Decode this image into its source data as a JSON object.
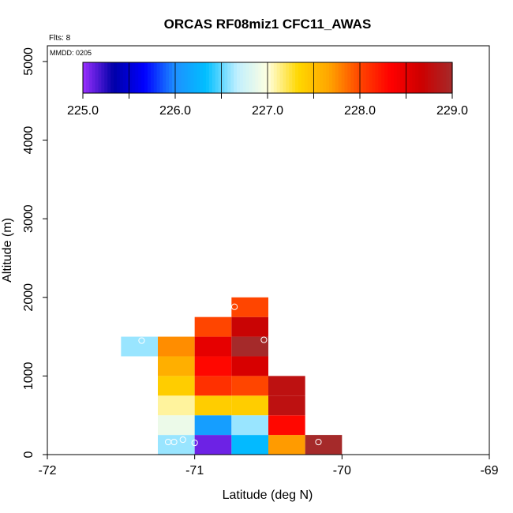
{
  "chart_data": {
    "type": "heatmap",
    "title": "ORCAS RF08miz1 CFC11_AWAS",
    "flights_label": "Flts: 8",
    "mmdd_label": "MMDD: 0205",
    "xlabel": "Latitude (deg N)",
    "ylabel": "Altitude (m)",
    "xlim": [
      -72,
      -69
    ],
    "ylim": [
      0,
      5200
    ],
    "x_ticks": [
      -72,
      -71,
      -70,
      -69
    ],
    "x_tick_labels": [
      "-72",
      "-71",
      "-70",
      "-69"
    ],
    "y_ticks": [
      0,
      1000,
      2000,
      3000,
      4000,
      5000
    ],
    "y_tick_labels": [
      "0",
      "1000",
      "2000",
      "3000",
      "4000",
      "5000"
    ],
    "bin_width_deg": 0.25,
    "bin_height_m": 250,
    "colorbar": {
      "min": 225.0,
      "max": 229.0,
      "ticks": [
        225.0,
        226.0,
        227.0,
        228.0,
        229.0
      ],
      "tick_labels": [
        "225.0",
        "226.0",
        "227.0",
        "228.0",
        "229.0"
      ],
      "colors": [
        "#9b30ff",
        "#0000a8",
        "#0000ff",
        "#1e90ff",
        "#00bfff",
        "#bfefff",
        "#ffffe0",
        "#ffd700",
        "#ffa500",
        "#ff4500",
        "#ff0000",
        "#cd0000",
        "#a52a2a"
      ]
    },
    "cells": [
      {
        "lat": -71.25,
        "alt": 0,
        "value": 226.6
      },
      {
        "lat": -71.25,
        "alt": 250,
        "value": 226.9
      },
      {
        "lat": -71.25,
        "alt": 500,
        "value": 227.1
      },
      {
        "lat": -71.25,
        "alt": 750,
        "value": 227.4
      },
      {
        "lat": -71.25,
        "alt": 1000,
        "value": 227.6
      },
      {
        "lat": -71.25,
        "alt": 1250,
        "value": 227.75
      },
      {
        "lat": -71.5,
        "alt": 1250,
        "value": 226.6
      },
      {
        "lat": -71.0,
        "alt": 0,
        "value": 225.1
      },
      {
        "lat": -71.0,
        "alt": 250,
        "value": 226.1
      },
      {
        "lat": -71.0,
        "alt": 500,
        "value": 227.4
      },
      {
        "lat": -71.0,
        "alt": 750,
        "value": 228.1
      },
      {
        "lat": -71.0,
        "alt": 1000,
        "value": 228.3
      },
      {
        "lat": -71.0,
        "alt": 1250,
        "value": 228.5
      },
      {
        "lat": -71.0,
        "alt": 1500,
        "value": 228.0
      },
      {
        "lat": -70.75,
        "alt": 0,
        "value": 226.3
      },
      {
        "lat": -70.75,
        "alt": 250,
        "value": 226.6
      },
      {
        "lat": -70.75,
        "alt": 500,
        "value": 227.4
      },
      {
        "lat": -70.75,
        "alt": 750,
        "value": 228.0
      },
      {
        "lat": -70.75,
        "alt": 1000,
        "value": 228.6
      },
      {
        "lat": -70.75,
        "alt": 1250,
        "value": 229.0
      },
      {
        "lat": -70.75,
        "alt": 1500,
        "value": 228.7
      },
      {
        "lat": -70.75,
        "alt": 1750,
        "value": 228.0
      },
      {
        "lat": -70.5,
        "alt": 0,
        "value": 227.7
      },
      {
        "lat": -70.5,
        "alt": 250,
        "value": 228.3
      },
      {
        "lat": -70.5,
        "alt": 500,
        "value": 228.8
      },
      {
        "lat": -70.5,
        "alt": 750,
        "value": 228.8
      },
      {
        "lat": -70.25,
        "alt": 0,
        "value": 229.0
      }
    ],
    "sample_points": [
      {
        "lat": -71.36,
        "alt": 1450
      },
      {
        "lat": -70.73,
        "alt": 1880
      },
      {
        "lat": -70.53,
        "alt": 1460
      },
      {
        "lat": -71.18,
        "alt": 160
      },
      {
        "lat": -71.14,
        "alt": 160
      },
      {
        "lat": -71.08,
        "alt": 190
      },
      {
        "lat": -71.0,
        "alt": 150
      },
      {
        "lat": -70.16,
        "alt": 160
      }
    ]
  }
}
